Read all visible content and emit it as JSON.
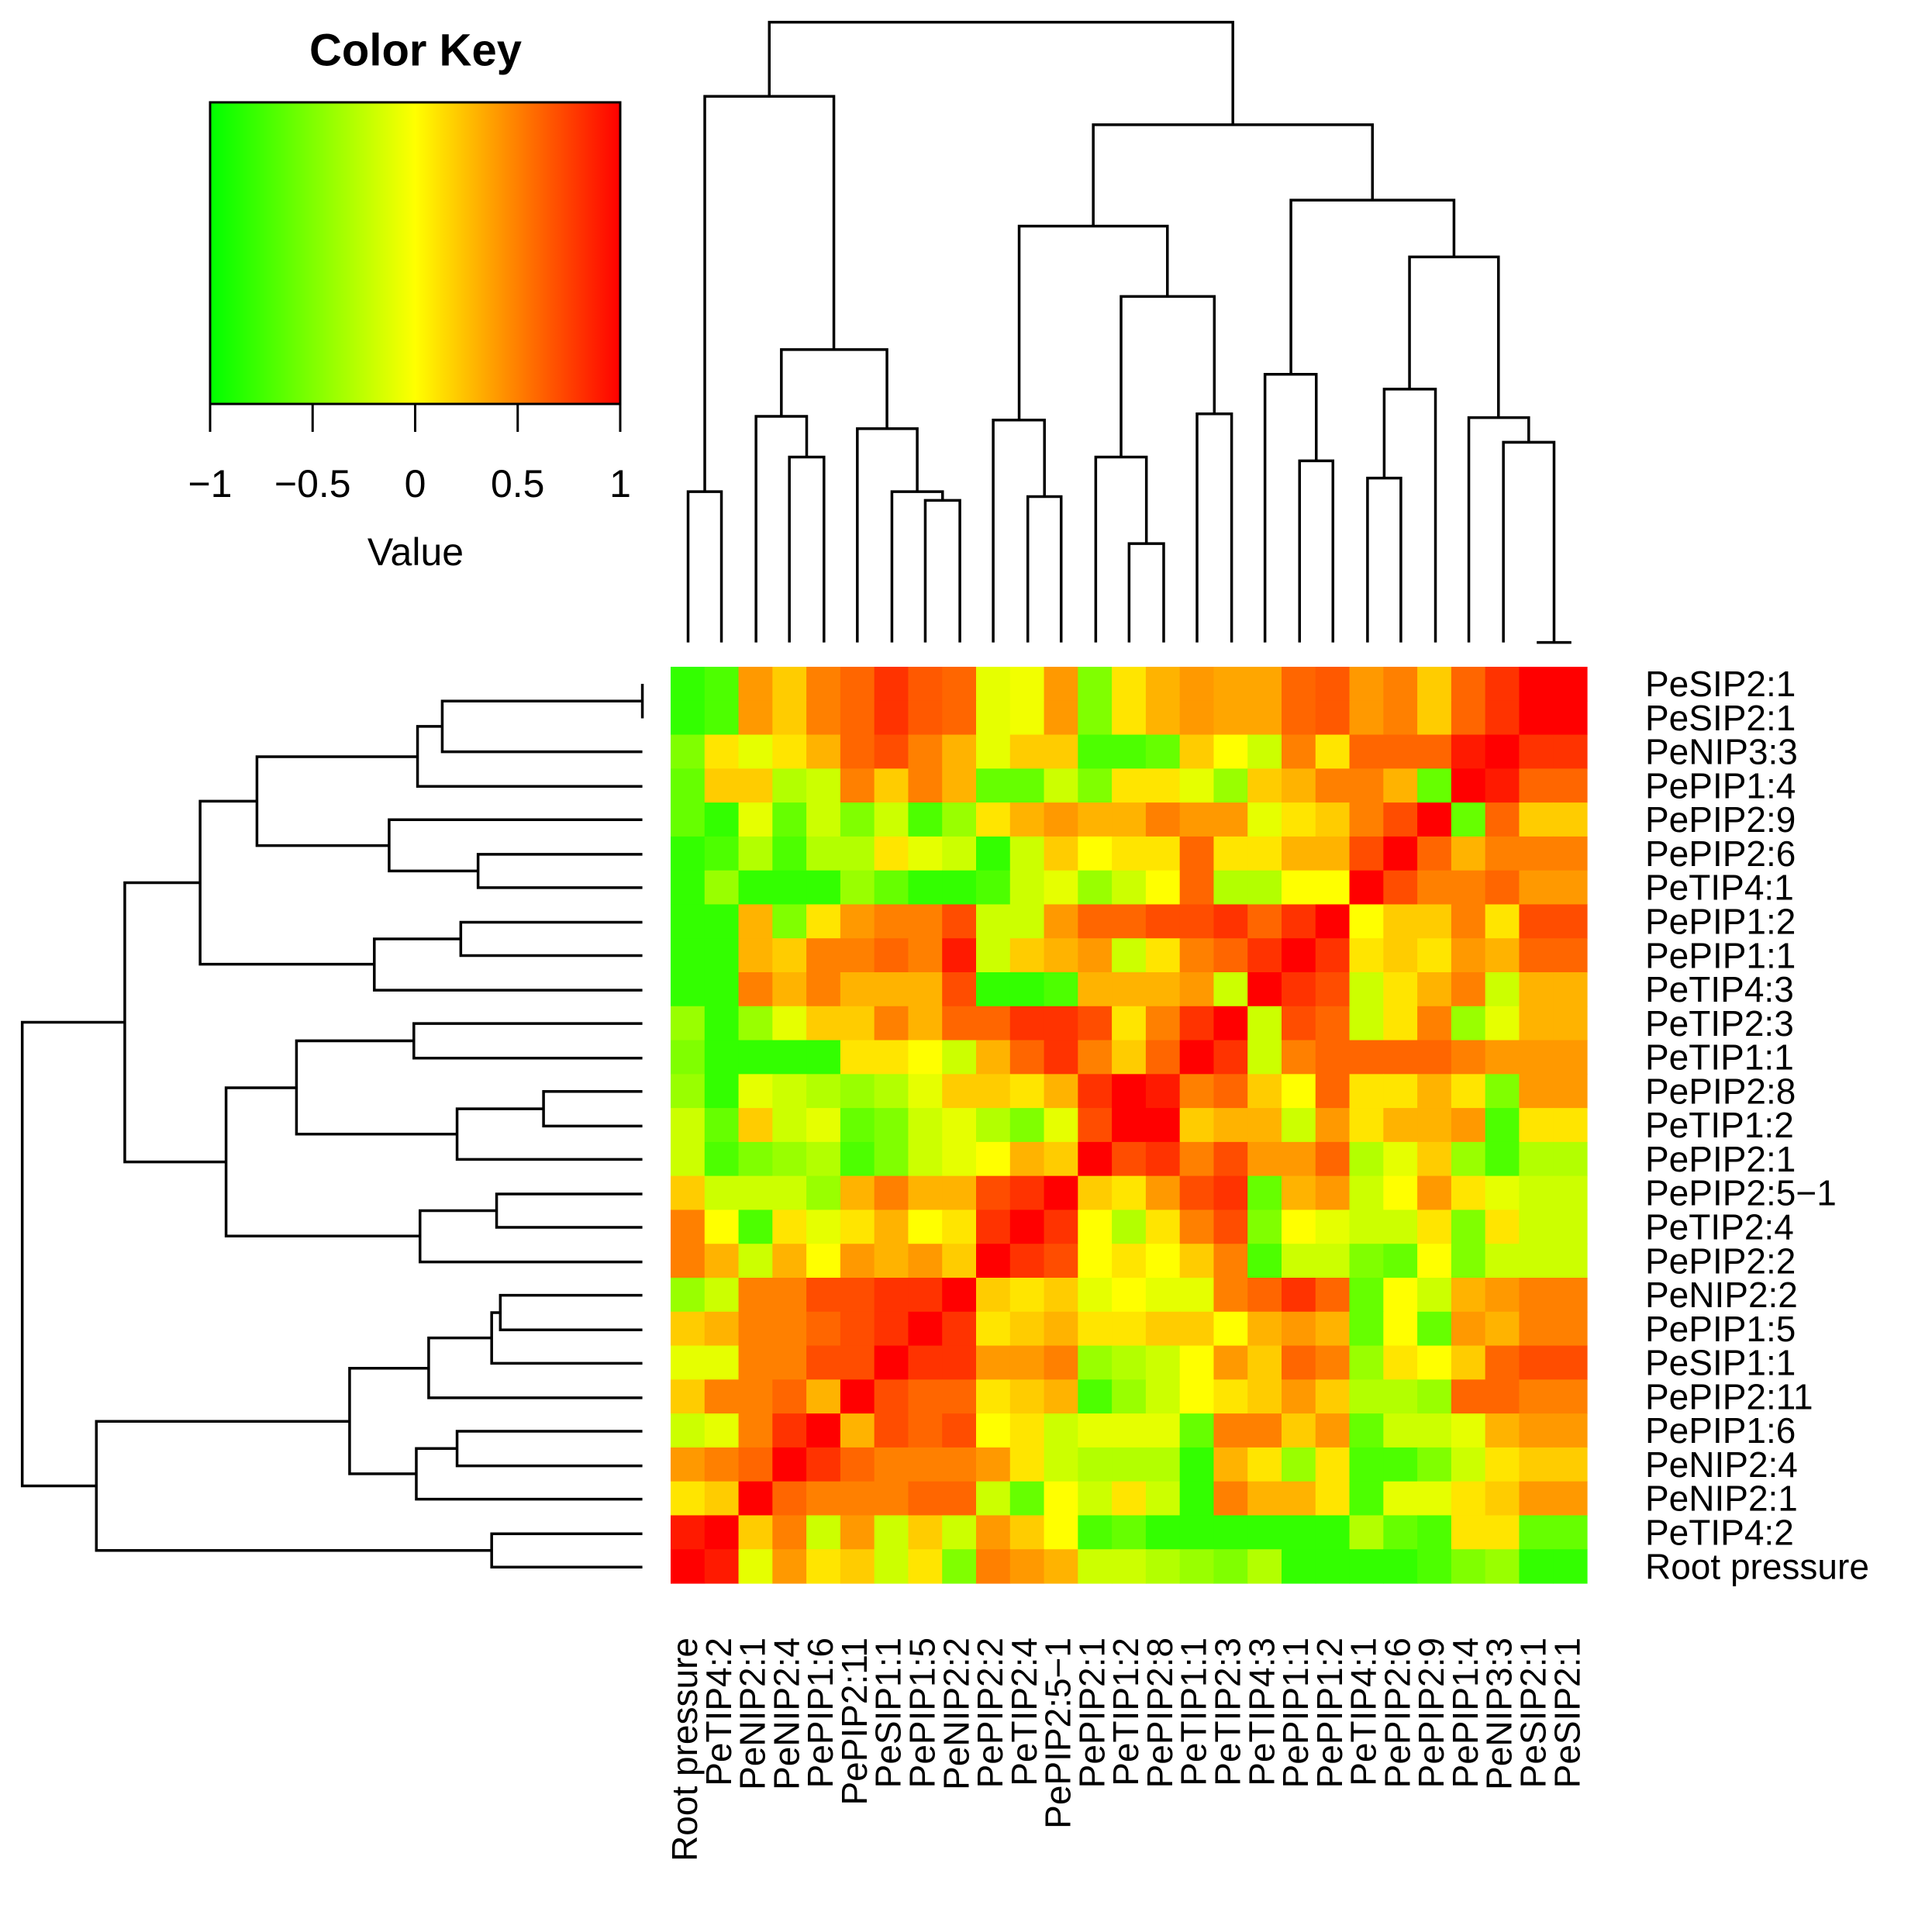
{
  "chart_data": {
    "type": "heatmap",
    "title": "Color Key",
    "colorbar_label": "Value",
    "colors": [
      "#00ff00",
      "#ffff00",
      "#ff0000"
    ],
    "zlim": [
      -1,
      1
    ],
    "zticks": [
      {
        "value": -1,
        "label": "−1"
      },
      {
        "value": -0.5,
        "label": "−0.5"
      },
      0,
      0.5,
      1
    ],
    "row_labels": [
      "PeSIP2:1",
      "PeSIP2:1",
      "PeNIP3:3",
      "PePIP1:4",
      "PePIP2:9",
      "PePIP2:6",
      "PeTIP4:1",
      "PePIP1:2",
      "PePIP1:1",
      "PeTIP4:3",
      "PeTIP2:3",
      "PeTIP1:1",
      "PePIP2:8",
      "PeTIP1:2",
      "PePIP2:1",
      "PePIP2:5−1",
      "PeTIP2:4",
      "PePIP2:2",
      "PeNIP2:2",
      "PePIP1:5",
      "PeSIP1:1",
      "PePIP2:11",
      "PePIP1:6",
      "PeNIP2:4",
      "PeNIP2:1",
      "PeTIP4:2",
      "Root pressure"
    ],
    "categories": [
      "Root pressure",
      "PeTIP4:2",
      "PeNIP2:1",
      "PeNIP2:4",
      "PePIP1:6",
      "PePIP2:11",
      "PeSIP1:1",
      "PePIP1:5",
      "PeNIP2:2",
      "PePIP2:2",
      "PeTIP2:4",
      "PePIP2:5−1",
      "PePIP2:1",
      "PeTIP1:2",
      "PePIP2:8",
      "PeTIP1:1",
      "PeTIP2:3",
      "PeTIP4:3",
      "PePIP1:1",
      "PePIP1:2",
      "PeTIP4:1",
      "PePIP2:6",
      "PePIP2:9",
      "PePIP1:4",
      "PeNIP3:3",
      "PeSIP2:1",
      "PeSIP2:1"
    ],
    "values": [
      [
        -0.8,
        -0.7,
        0.4,
        0.2,
        0.5,
        0.6,
        0.8,
        0.65,
        0.6,
        -0.1,
        -0.05,
        0.4,
        -0.5,
        0.1,
        0.3,
        0.4,
        0.35,
        0.35,
        0.6,
        0.65,
        0.4,
        0.5,
        0.2,
        0.6,
        0.8,
        1,
        1
      ],
      [
        -0.8,
        -0.7,
        0.4,
        0.2,
        0.5,
        0.6,
        0.8,
        0.65,
        0.6,
        -0.1,
        -0.05,
        0.4,
        -0.5,
        0.1,
        0.3,
        0.4,
        0.35,
        0.35,
        0.6,
        0.65,
        0.4,
        0.5,
        0.2,
        0.6,
        0.8,
        1,
        1
      ],
      [
        -0.5,
        0.1,
        -0.1,
        0.1,
        0.3,
        0.6,
        0.7,
        0.5,
        0.3,
        -0.1,
        0.2,
        0.2,
        -0.7,
        -0.7,
        -0.6,
        0.2,
        0.0,
        -0.2,
        0.5,
        0.1,
        0.6,
        0.6,
        0.6,
        0.9,
        1,
        0.8,
        0.8
      ],
      [
        -0.6,
        0.2,
        0.2,
        -0.3,
        -0.2,
        0.5,
        0.2,
        0.5,
        0.3,
        -0.6,
        -0.6,
        -0.2,
        -0.5,
        0.1,
        0.1,
        -0.1,
        -0.4,
        0.2,
        0.3,
        0.5,
        0.5,
        0.3,
        -0.6,
        1,
        0.9,
        0.6,
        0.6
      ],
      [
        -0.6,
        -0.8,
        -0.1,
        -0.6,
        -0.2,
        -0.5,
        -0.2,
        -0.7,
        -0.4,
        0.1,
        0.3,
        0.4,
        0.3,
        0.3,
        0.5,
        0.4,
        0.4,
        -0.1,
        0.1,
        0.2,
        0.5,
        0.7,
        1,
        -0.6,
        0.6,
        0.2,
        0.2
      ],
      [
        -0.8,
        -0.7,
        -0.3,
        -0.7,
        -0.3,
        -0.3,
        0.1,
        -0.1,
        -0.2,
        -0.8,
        -0.2,
        0.2,
        0.0,
        0.1,
        0.1,
        0.6,
        0.1,
        0.1,
        0.3,
        0.3,
        0.7,
        1,
        0.6,
        0.3,
        0.5,
        0.5,
        0.5
      ],
      [
        -0.8,
        -0.4,
        -0.8,
        -0.8,
        -0.8,
        -0.4,
        -0.6,
        -0.8,
        -0.8,
        -0.7,
        -0.2,
        -0.1,
        -0.4,
        -0.2,
        0.0,
        0.6,
        -0.3,
        -0.3,
        0.0,
        0.0,
        1,
        0.7,
        0.5,
        0.5,
        0.6,
        0.4,
        0.4
      ],
      [
        -0.8,
        -0.8,
        0.3,
        -0.5,
        0.1,
        0.4,
        0.5,
        0.5,
        0.7,
        -0.2,
        -0.2,
        0.4,
        0.6,
        0.6,
        0.7,
        0.7,
        0.8,
        0.6,
        0.8,
        1,
        0.0,
        0.2,
        0.2,
        0.5,
        0.1,
        0.7,
        0.7
      ],
      [
        -0.8,
        -0.8,
        0.3,
        0.2,
        0.5,
        0.5,
        0.6,
        0.5,
        0.9,
        -0.2,
        0.2,
        0.3,
        0.4,
        -0.2,
        0.1,
        0.5,
        0.6,
        0.8,
        1,
        0.8,
        0.1,
        0.2,
        0.1,
        0.4,
        0.3,
        0.6,
        0.6
      ],
      [
        -0.8,
        -0.8,
        0.5,
        0.3,
        0.5,
        0.3,
        0.3,
        0.3,
        0.7,
        -0.8,
        -0.8,
        -0.7,
        0.3,
        0.3,
        0.3,
        0.4,
        -0.2,
        1,
        0.8,
        0.7,
        -0.2,
        0.1,
        0.3,
        0.5,
        -0.2,
        0.3,
        0.3
      ],
      [
        -0.4,
        -0.8,
        -0.4,
        -0.1,
        0.2,
        0.2,
        0.5,
        0.3,
        0.6,
        0.6,
        0.8,
        0.8,
        0.7,
        0.1,
        0.5,
        0.8,
        1,
        -0.2,
        0.7,
        0.6,
        -0.2,
        0.1,
        0.5,
        -0.4,
        -0.1,
        0.3,
        0.3
      ],
      [
        -0.5,
        -0.8,
        -0.8,
        -0.8,
        -0.8,
        0.1,
        0.1,
        0.0,
        -0.2,
        0.3,
        0.6,
        0.8,
        0.5,
        0.2,
        0.6,
        1,
        0.8,
        -0.2,
        0.5,
        0.6,
        0.6,
        0.6,
        0.6,
        0.5,
        0.4,
        0.4,
        0.4
      ],
      [
        -0.4,
        -0.8,
        -0.1,
        -0.2,
        -0.3,
        -0.4,
        -0.3,
        -0.1,
        0.2,
        0.2,
        0.1,
        0.3,
        0.8,
        1,
        0.9,
        0.5,
        0.6,
        0.2,
        0.0,
        0.6,
        0.1,
        0.1,
        0.3,
        0.1,
        -0.5,
        0.4,
        0.4
      ],
      [
        -0.2,
        -0.6,
        0.2,
        -0.2,
        -0.1,
        -0.6,
        -0.5,
        -0.2,
        -0.1,
        -0.3,
        -0.5,
        -0.1,
        0.7,
        1,
        1,
        0.2,
        0.3,
        0.3,
        -0.2,
        0.4,
        0.1,
        0.3,
        0.3,
        0.4,
        -0.7,
        0.1,
        0.1
      ],
      [
        -0.2,
        -0.7,
        -0.5,
        -0.4,
        -0.3,
        -0.7,
        -0.5,
        -0.2,
        -0.1,
        0.0,
        0.3,
        0.2,
        1,
        0.7,
        0.8,
        0.5,
        0.7,
        0.4,
        0.4,
        0.6,
        -0.3,
        -0.1,
        0.2,
        -0.4,
        -0.7,
        -0.3,
        -0.3
      ],
      [
        0.2,
        -0.2,
        -0.2,
        -0.2,
        -0.4,
        0.3,
        0.5,
        0.3,
        0.3,
        0.7,
        0.8,
        1,
        0.2,
        0.1,
        0.4,
        0.7,
        0.8,
        -0.6,
        0.3,
        0.4,
        -0.2,
        0.0,
        0.4,
        0.1,
        -0.1,
        -0.2,
        -0.2
      ],
      [
        0.5,
        0.0,
        -0.7,
        0.1,
        -0.1,
        0.1,
        0.3,
        0.0,
        0.1,
        0.8,
        1,
        0.8,
        0.0,
        -0.3,
        0.1,
        0.5,
        0.7,
        -0.5,
        0.0,
        -0.1,
        -0.2,
        -0.2,
        0.1,
        -0.5,
        0.1,
        -0.2,
        -0.2
      ],
      [
        0.5,
        0.3,
        -0.2,
        0.3,
        0.0,
        0.4,
        0.3,
        0.4,
        0.2,
        1,
        0.8,
        0.7,
        0.0,
        0.1,
        0.0,
        0.2,
        0.5,
        -0.7,
        -0.2,
        -0.2,
        -0.5,
        -0.6,
        0.0,
        -0.5,
        -0.2,
        -0.2,
        -0.2
      ],
      [
        -0.4,
        -0.2,
        0.5,
        0.5,
        0.7,
        0.7,
        0.8,
        0.8,
        1,
        0.2,
        0.1,
        0.2,
        -0.1,
        0.0,
        -0.1,
        -0.1,
        0.5,
        0.6,
        0.8,
        0.6,
        -0.6,
        0.0,
        -0.2,
        0.3,
        0.4,
        0.5,
        0.5
      ],
      [
        0.2,
        0.3,
        0.5,
        0.5,
        0.6,
        0.7,
        0.8,
        1,
        0.8,
        0.1,
        0.2,
        0.3,
        0.1,
        0.1,
        0.2,
        0.2,
        0.0,
        0.3,
        0.4,
        0.3,
        -0.6,
        0.0,
        -0.6,
        0.4,
        0.3,
        0.5,
        0.5
      ],
      [
        -0.1,
        -0.1,
        0.5,
        0.5,
        0.7,
        0.7,
        1,
        0.8,
        0.8,
        0.4,
        0.4,
        0.5,
        -0.4,
        -0.3,
        -0.2,
        0.0,
        0.4,
        0.2,
        0.6,
        0.5,
        -0.4,
        0.1,
        0.0,
        0.2,
        0.6,
        0.7,
        0.7
      ],
      [
        0.2,
        0.5,
        0.5,
        0.6,
        0.3,
        1,
        0.7,
        0.6,
        0.6,
        0.1,
        0.2,
        0.3,
        -0.7,
        -0.4,
        -0.2,
        0.0,
        0.1,
        0.2,
        0.4,
        0.2,
        -0.3,
        -0.3,
        -0.4,
        0.6,
        0.6,
        0.5,
        0.5
      ],
      [
        -0.2,
        -0.1,
        0.5,
        0.8,
        1,
        0.3,
        0.7,
        0.6,
        0.7,
        0.0,
        0.1,
        -0.2,
        -0.1,
        -0.1,
        -0.1,
        -0.6,
        0.5,
        0.5,
        0.2,
        0.4,
        -0.6,
        -0.2,
        -0.2,
        -0.1,
        0.3,
        0.4,
        0.4
      ],
      [
        0.4,
        0.5,
        0.6,
        1,
        0.8,
        0.6,
        0.5,
        0.5,
        0.5,
        0.4,
        0.1,
        -0.2,
        -0.3,
        -0.3,
        -0.3,
        -0.8,
        0.3,
        0.1,
        -0.4,
        0.1,
        -0.7,
        -0.7,
        -0.5,
        -0.2,
        0.1,
        0.2,
        0.2
      ],
      [
        0.1,
        0.2,
        1,
        0.6,
        0.5,
        0.5,
        0.5,
        0.6,
        0.6,
        -0.2,
        -0.6,
        0.0,
        -0.2,
        0.1,
        -0.2,
        -0.8,
        0.5,
        0.3,
        0.3,
        0.1,
        -0.7,
        -0.1,
        -0.1,
        0.1,
        0.2,
        0.4,
        0.4
      ],
      [
        0.9,
        1,
        0.2,
        0.5,
        -0.2,
        0.4,
        -0.2,
        0.2,
        -0.2,
        0.4,
        0.2,
        0.0,
        -0.7,
        -0.6,
        -0.8,
        -0.8,
        -0.8,
        -0.8,
        -0.8,
        -0.8,
        -0.3,
        -0.6,
        -0.7,
        0.1,
        0.1,
        -0.6,
        -0.6
      ],
      [
        1,
        0.9,
        -0.1,
        0.4,
        0.1,
        0.2,
        -0.2,
        0.1,
        -0.5,
        0.5,
        0.4,
        0.3,
        -0.2,
        -0.2,
        -0.3,
        -0.4,
        -0.5,
        -0.3,
        -0.8,
        -0.8,
        -0.8,
        -0.8,
        -0.7,
        -0.5,
        -0.4,
        -0.8,
        -0.8
      ]
    ]
  }
}
